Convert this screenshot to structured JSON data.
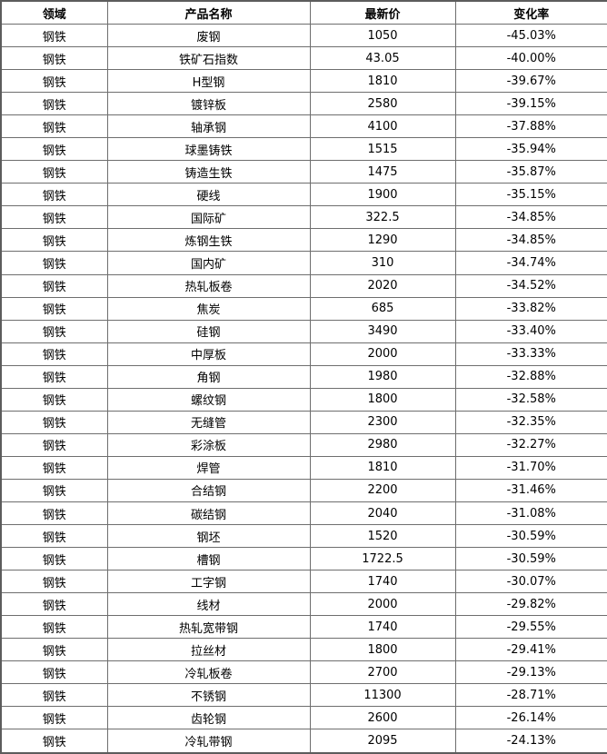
{
  "chart_data": {
    "type": "table",
    "headers": [
      "领域",
      "产品名称",
      "最新价",
      "变化率"
    ],
    "rows": [
      [
        "钢铁",
        "废钢",
        "1050",
        "-45.03%"
      ],
      [
        "钢铁",
        "铁矿石指数",
        "43.05",
        "-40.00%"
      ],
      [
        "钢铁",
        "H型钢",
        "1810",
        "-39.67%"
      ],
      [
        "钢铁",
        "镀锌板",
        "2580",
        "-39.15%"
      ],
      [
        "钢铁",
        "轴承钢",
        "4100",
        "-37.88%"
      ],
      [
        "钢铁",
        "球墨铸铁",
        "1515",
        "-35.94%"
      ],
      [
        "钢铁",
        "铸造生铁",
        "1475",
        "-35.87%"
      ],
      [
        "钢铁",
        "硬线",
        "1900",
        "-35.15%"
      ],
      [
        "钢铁",
        "国际矿",
        "322.5",
        "-34.85%"
      ],
      [
        "钢铁",
        "炼钢生铁",
        "1290",
        "-34.85%"
      ],
      [
        "钢铁",
        "国内矿",
        "310",
        "-34.74%"
      ],
      [
        "钢铁",
        "热轧板卷",
        "2020",
        "-34.52%"
      ],
      [
        "钢铁",
        "焦炭",
        "685",
        "-33.82%"
      ],
      [
        "钢铁",
        "硅钢",
        "3490",
        "-33.40%"
      ],
      [
        "钢铁",
        "中厚板",
        "2000",
        "-33.33%"
      ],
      [
        "钢铁",
        "角钢",
        "1980",
        "-32.88%"
      ],
      [
        "钢铁",
        "螺纹钢",
        "1800",
        "-32.58%"
      ],
      [
        "钢铁",
        "无缝管",
        "2300",
        "-32.35%"
      ],
      [
        "钢铁",
        "彩涂板",
        "2980",
        "-32.27%"
      ],
      [
        "钢铁",
        "焊管",
        "1810",
        "-31.70%"
      ],
      [
        "钢铁",
        "合结钢",
        "2200",
        "-31.46%"
      ],
      [
        "钢铁",
        "碳结钢",
        "2040",
        "-31.08%"
      ],
      [
        "钢铁",
        "钢坯",
        "1520",
        "-30.59%"
      ],
      [
        "钢铁",
        "槽钢",
        "1722.5",
        "-30.59%"
      ],
      [
        "钢铁",
        "工字钢",
        "1740",
        "-30.07%"
      ],
      [
        "钢铁",
        "线材",
        "2000",
        "-29.82%"
      ],
      [
        "钢铁",
        "热轧宽带钢",
        "1740",
        "-29.55%"
      ],
      [
        "钢铁",
        "拉丝材",
        "1800",
        "-29.41%"
      ],
      [
        "钢铁",
        "冷轧板卷",
        "2700",
        "-29.13%"
      ],
      [
        "钢铁",
        "不锈钢",
        "11300",
        "-28.71%"
      ],
      [
        "钢铁",
        "齿轮钢",
        "2600",
        "-26.14%"
      ],
      [
        "钢铁",
        "冷轧带钢",
        "2095",
        "-24.13%"
      ]
    ]
  },
  "colors": {
    "border_outer": "#5c5c5c",
    "border_inner": "#6e6e6e",
    "text": "#000000",
    "background": "#ffffff"
  }
}
